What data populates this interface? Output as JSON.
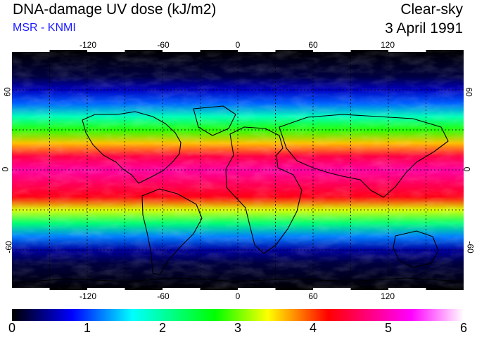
{
  "header": {
    "title": "DNA-damage UV dose (kJ/m2)",
    "subtitle": "MSR - KNMI",
    "subtitle_color": "#1a1aff",
    "condition": "Clear-sky",
    "date": "3 April 1991"
  },
  "map": {
    "background": "#000000",
    "grid_color": "#ffffff",
    "lon_range": [
      -180,
      180
    ],
    "lat_range": [
      -90,
      90
    ],
    "lon_ticks": [
      "-120",
      "-60",
      "0",
      "60",
      "120"
    ],
    "lat_ticks": [
      "60",
      "0",
      "-60"
    ],
    "lat_ticks_right": [
      "60",
      "0",
      "-60"
    ],
    "gridlines_lon": [
      -150,
      -120,
      -90,
      -60,
      -30,
      0,
      30,
      60,
      90,
      120,
      150
    ],
    "gridlines_lat": [
      -60,
      -30,
      0,
      30,
      60
    ],
    "field_profile": {
      "latitudes": [
        -90,
        -70,
        -60,
        -50,
        -40,
        -30,
        -20,
        -10,
        0,
        10,
        20,
        30,
        40,
        50,
        60,
        70,
        90
      ],
      "dose": [
        0.0,
        0.2,
        0.5,
        1.2,
        2.2,
        3.3,
        4.3,
        4.6,
        4.9,
        4.5,
        3.6,
        2.8,
        1.9,
        1.1,
        0.6,
        0.2,
        0.0
      ]
    }
  },
  "colorbar": {
    "min": 0,
    "max": 6,
    "labels": [
      "0",
      "1",
      "2",
      "3",
      "4",
      "5",
      "6"
    ],
    "stops": [
      {
        "v": 0.0,
        "c": "#000000"
      },
      {
        "v": 0.8,
        "c": "#0000ff"
      },
      {
        "v": 1.6,
        "c": "#00ffff"
      },
      {
        "v": 2.7,
        "c": "#00ff00"
      },
      {
        "v": 3.4,
        "c": "#ffff00"
      },
      {
        "v": 4.2,
        "c": "#ff0000"
      },
      {
        "v": 5.3,
        "c": "#ff00ff"
      },
      {
        "v": 6.0,
        "c": "#ffffff"
      }
    ]
  }
}
